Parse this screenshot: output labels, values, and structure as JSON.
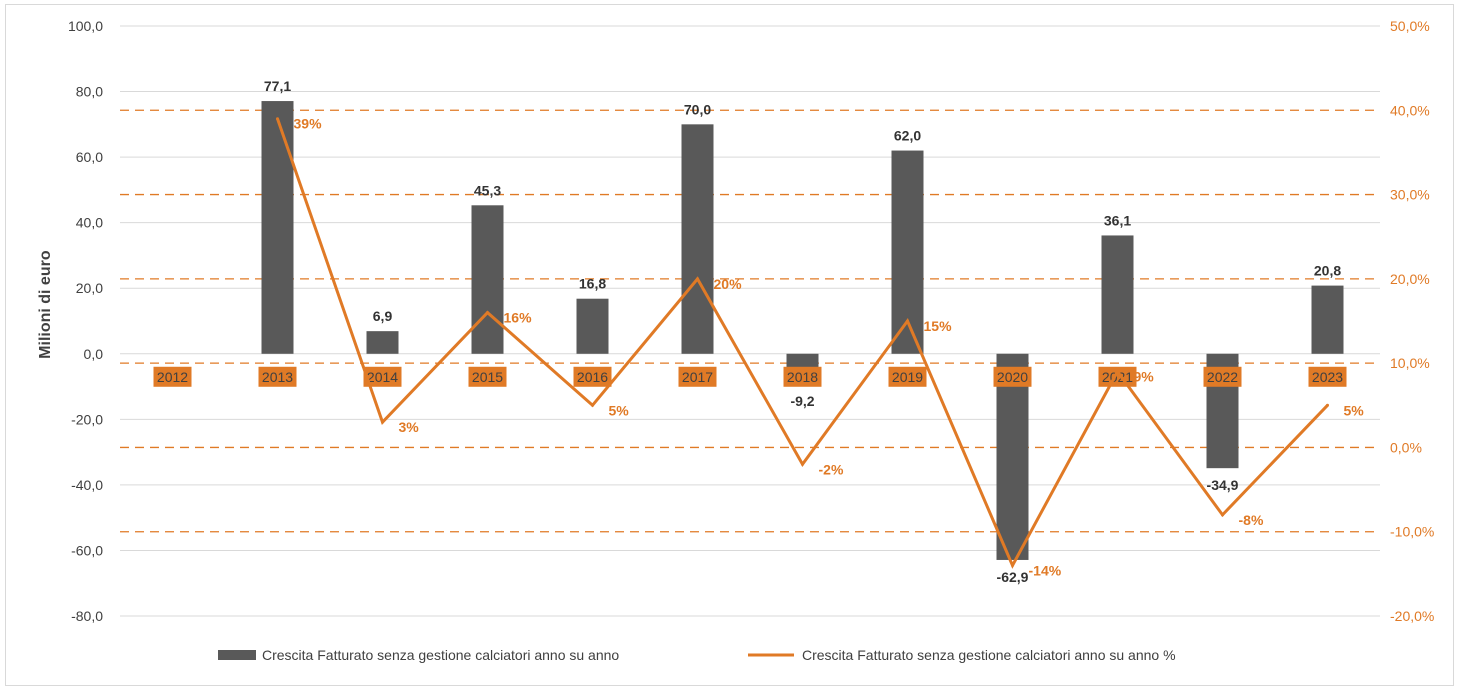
{
  "chart_data": {
    "type": "bar",
    "categories": [
      "2012",
      "2013",
      "2014",
      "2015",
      "2016",
      "2017",
      "2018",
      "2019",
      "2020",
      "2021",
      "2022",
      "2023"
    ],
    "series": [
      {
        "name": "Crescita Fatturato senza gestione calciatori anno su anno",
        "type": "bar",
        "axis": "left",
        "values": [
          null,
          77.1,
          6.9,
          45.3,
          16.8,
          70.0,
          -9.2,
          62.0,
          -62.9,
          36.1,
          -34.9,
          20.8
        ],
        "labels": [
          "",
          "77,1",
          "6,9",
          "45,3",
          "16,8",
          "70,0",
          "-9,2",
          "62,0",
          "-62,9",
          "36,1",
          "-34,9",
          "20,8"
        ],
        "color": "#595959"
      },
      {
        "name": "Crescita Fatturato senza gestione calciatori anno su anno %",
        "type": "line",
        "axis": "right",
        "values": [
          null,
          39,
          3,
          16,
          5,
          20,
          -2,
          15,
          -14,
          9,
          -8,
          5
        ],
        "labels": [
          "",
          "39%",
          "3%",
          "16%",
          "5%",
          "20%",
          "-2%",
          "15%",
          "-14%",
          "9%",
          "-8%",
          "5%"
        ],
        "color": "#e07a26"
      }
    ],
    "ylabel": "Milioni di euro",
    "ylim": [
      -80,
      100
    ],
    "y_ticks": [
      100,
      80,
      60,
      40,
      20,
      0,
      -20,
      -40,
      -60,
      -80
    ],
    "y_tick_labels": [
      "100,0",
      "80,0",
      "60,0",
      "40,0",
      "20,0",
      "0,0",
      "-20,0",
      "-40,0",
      "-60,0",
      "-80,0"
    ],
    "y2lim": [
      -20,
      50
    ],
    "y2_ticks": [
      50,
      40,
      30,
      20,
      10,
      0,
      -10,
      -20
    ],
    "y2_tick_labels": [
      "50,0%",
      "40,0%",
      "30,0%",
      "20,0%",
      "10,0%",
      "0,0%",
      "-10,0%",
      "-20,0%"
    ],
    "grid": true,
    "legend_position": "bottom",
    "category_label_color": "#e07a26",
    "secondary_grid_color": "#e07a26"
  }
}
